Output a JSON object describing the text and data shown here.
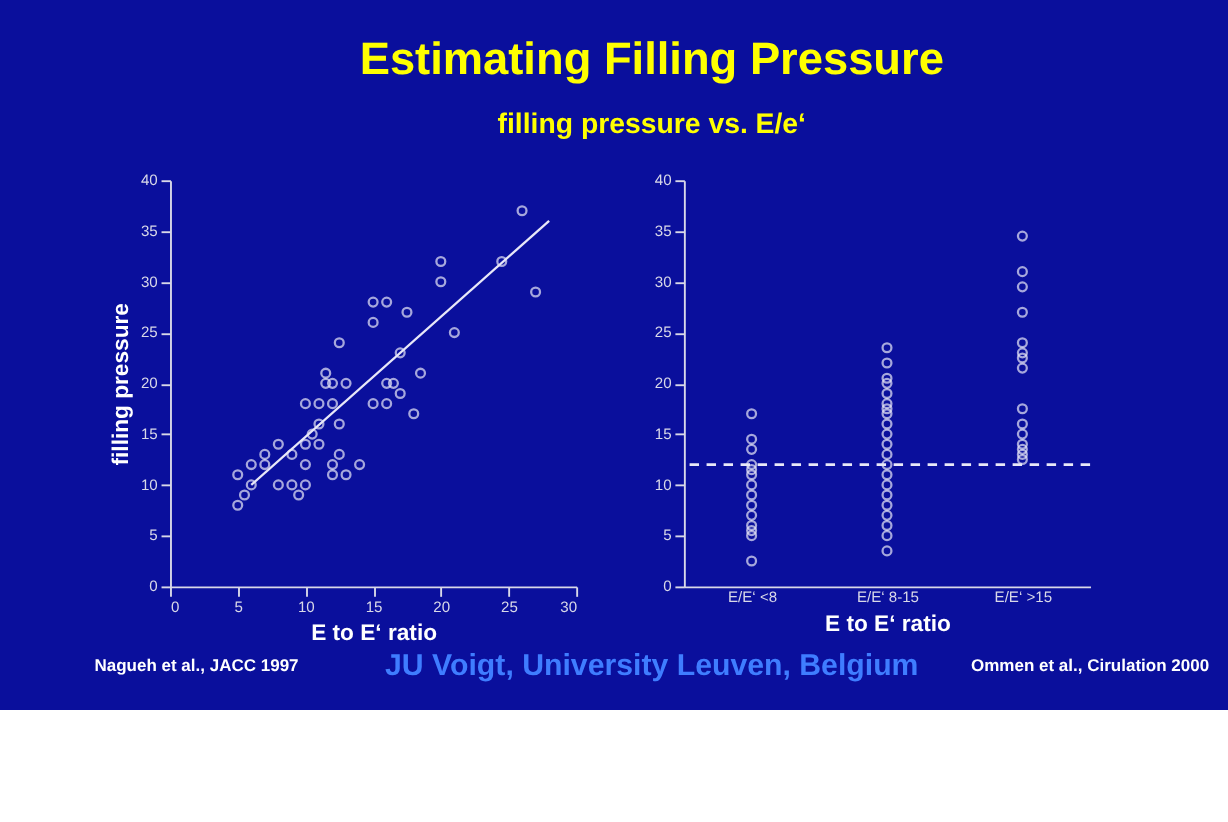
{
  "chart_data": [
    {
      "type": "scatter",
      "title": "Estimating Filling Pressure",
      "subtitle": "filling pressure vs. E/e‘",
      "xlabel": "E to E‘ ratio",
      "ylabel": "filling pressure",
      "xlim": [
        0,
        30
      ],
      "xticks": [
        0,
        5,
        10,
        15,
        20,
        25,
        30
      ],
      "ylim": [
        0,
        40
      ],
      "yticks": [
        0,
        5,
        10,
        15,
        20,
        25,
        30,
        35,
        40
      ],
      "grid": false,
      "marker": "circle",
      "annotations": [
        "Nagueh et al., JACC 1997",
        "JU Voigt, University Leuven, Belgium"
      ],
      "series": [
        {
          "color": "#e8e8f8",
          "x": [
            26,
            27,
            24.5,
            20,
            20,
            21,
            18.5,
            17.5,
            18,
            17,
            17,
            16.5,
            16,
            16,
            15,
            15,
            16,
            15,
            12.5,
            11.5,
            11.5,
            12,
            13,
            12.5,
            10,
            11,
            12,
            10.5,
            11,
            10,
            9,
            8,
            7,
            6,
            7,
            5,
            6,
            5.5,
            5,
            8,
            9,
            10,
            9.5,
            12,
            12.5,
            13,
            12,
            14,
            10,
            11
          ],
          "values": [
            37,
            29,
            32,
            32,
            30,
            25,
            21,
            27,
            17,
            23,
            19,
            20,
            20,
            18,
            18,
            28,
            28,
            26,
            24,
            21,
            20,
            20,
            20,
            16,
            18,
            18,
            18,
            15,
            14,
            12,
            13,
            14,
            13,
            12,
            12,
            11,
            10,
            9,
            8,
            10,
            10,
            10,
            9,
            12,
            13,
            11,
            11,
            12,
            14,
            16
          ]
        },
        {
          "type": "line",
          "color": "#e8e8f8",
          "marker": "none",
          "x": [
            6,
            28
          ],
          "values": [
            10,
            36
          ]
        }
      ]
    },
    {
      "type": "scatter",
      "xlabel": "E to E‘ ratio",
      "categories": [
        "E/E‘ <8",
        "E/E‘ 8-15",
        "E/E‘ >15"
      ],
      "ylim": [
        0,
        40
      ],
      "yticks": [
        0,
        5,
        10,
        15,
        20,
        25,
        30,
        35,
        40
      ],
      "grid": false,
      "marker": "circle",
      "annotations": [
        "Ommen et al., Cirulation 2000"
      ],
      "ref_lines": [
        {
          "axis": "y",
          "value": 12,
          "color": "#e8e8f8",
          "line_style": "dashed"
        }
      ],
      "series": [
        {
          "color": "#e8e8f8",
          "x": [
            "E/E‘ <8",
            "E/E‘ <8",
            "E/E‘ <8",
            "E/E‘ <8",
            "E/E‘ <8",
            "E/E‘ <8",
            "E/E‘ <8",
            "E/E‘ <8",
            "E/E‘ <8",
            "E/E‘ <8",
            "E/E‘ <8",
            "E/E‘ <8",
            "E/E‘ <8",
            "E/E‘ <8",
            "E/E‘ 8-15",
            "E/E‘ 8-15",
            "E/E‘ 8-15",
            "E/E‘ 8-15",
            "E/E‘ 8-15",
            "E/E‘ 8-15",
            "E/E‘ 8-15",
            "E/E‘ 8-15",
            "E/E‘ 8-15",
            "E/E‘ 8-15",
            "E/E‘ 8-15",
            "E/E‘ 8-15",
            "E/E‘ 8-15",
            "E/E‘ 8-15",
            "E/E‘ 8-15",
            "E/E‘ 8-15",
            "E/E‘ 8-15",
            "E/E‘ 8-15",
            "E/E‘ 8-15",
            "E/E‘ 8-15",
            "E/E‘ 8-15",
            "E/E‘ >15",
            "E/E‘ >15",
            "E/E‘ >15",
            "E/E‘ >15",
            "E/E‘ >15",
            "E/E‘ >15",
            "E/E‘ >15",
            "E/E‘ >15",
            "E/E‘ >15",
            "E/E‘ >15",
            "E/E‘ >15",
            "E/E‘ >15",
            "E/E‘ >15",
            "E/E‘ >15",
            "E/E‘ >15"
          ],
          "values": [
            17,
            14.5,
            13.5,
            12,
            11,
            10,
            9,
            8,
            7,
            6,
            5.5,
            5,
            2.5,
            11.5,
            23.5,
            22,
            20.5,
            20,
            19,
            18,
            17.5,
            17,
            16,
            15,
            14,
            13,
            12,
            11,
            10,
            9,
            8,
            7,
            6,
            5,
            3.5,
            34.5,
            31,
            29.5,
            27,
            24,
            23,
            22.5,
            21.5,
            17.5,
            16,
            15,
            14,
            13.5,
            13,
            12.5
          ]
        }
      ]
    }
  ]
}
